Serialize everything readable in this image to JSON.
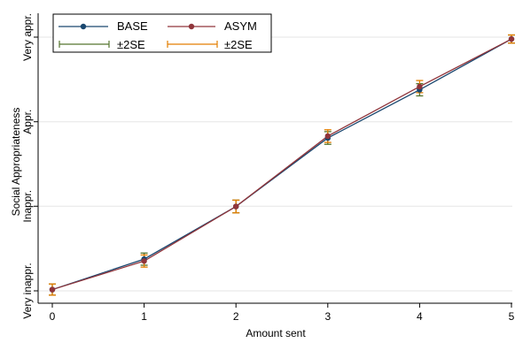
{
  "chart_data": {
    "type": "line",
    "xlabel": "Amount sent",
    "ylabel": "Social Appropriateness",
    "x": [
      0,
      1,
      2,
      3,
      4,
      5
    ],
    "xlim": [
      0,
      5
    ],
    "ylim": [
      -1.25,
      1.0
    ],
    "x_ticks": [
      {
        "value": 0,
        "label": "0"
      },
      {
        "value": 1,
        "label": "1"
      },
      {
        "value": 2,
        "label": "2"
      },
      {
        "value": 3,
        "label": "3"
      },
      {
        "value": 4,
        "label": "4"
      },
      {
        "value": 5,
        "label": "5"
      }
    ],
    "y_ticks": [
      {
        "value": -1.0,
        "label": "Very inappr."
      },
      {
        "value": -0.333,
        "label": "Inappr."
      },
      {
        "value": 0.333,
        "label": "Appr."
      },
      {
        "value": 1.0,
        "label": "Very appr."
      }
    ],
    "grid": true,
    "legend_position": "top-left",
    "series": [
      {
        "name": "BASE",
        "color": "#1a476f",
        "ci_color": "#55752f",
        "ci_label": "±2SE",
        "values": [
          -0.99,
          -0.75,
          -0.335,
          0.205,
          0.585,
          0.985
        ],
        "se": [
          0.022,
          0.024,
          0.025,
          0.025,
          0.024,
          0.016
        ]
      },
      {
        "name": "ASYM",
        "color": "#90353b",
        "ci_color": "#e37e00",
        "ci_label": "±2SE",
        "values": [
          -0.99,
          -0.765,
          -0.335,
          0.22,
          0.61,
          0.985
        ],
        "se": [
          0.022,
          0.024,
          0.025,
          0.025,
          0.024,
          0.016
        ]
      }
    ]
  }
}
